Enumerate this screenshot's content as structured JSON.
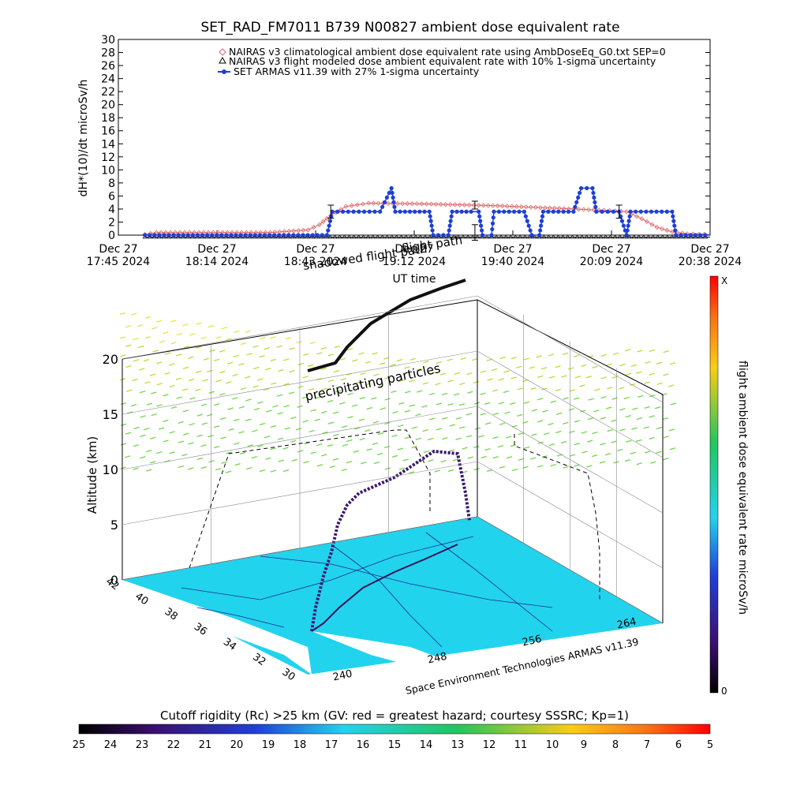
{
  "chart_data": [
    {
      "type": "line",
      "title": "SET_RAD_FM7011  B739 N00827 ambient dose equivalent rate",
      "ylabel": "dH*(10)/dt microSv/h",
      "xlabel": "UT time",
      "ylim": [
        0,
        30
      ],
      "yticks": [
        "0",
        "2",
        "4",
        "6",
        "8",
        "10",
        "12",
        "14",
        "16",
        "18",
        "20",
        "22",
        "24",
        "26",
        "28",
        "30"
      ],
      "xticks": [
        {
          "date": "Dec 27",
          "time": "17:45 2024"
        },
        {
          "date": "Dec 27",
          "time": "18:14 2024"
        },
        {
          "date": "Dec 27",
          "time": "18:43 2024"
        },
        {
          "date": "Dec 27",
          "time": "19:12 2024"
        },
        {
          "date": "Dec 27",
          "time": "19:40 2024"
        },
        {
          "date": "Dec 27",
          "time": "20:09 2024"
        },
        {
          "date": "Dec 27",
          "time": "20:38 2024"
        }
      ],
      "legend_placement": "top-right",
      "series": [
        {
          "name": "NAIRAS v3 climatological ambient dose equivalent rate using AmbDoseEq_G0.txt SEP=0",
          "color": "#e06666",
          "marker": "diamond",
          "points": [
            [
              0.35,
              0.1
            ],
            [
              0.5,
              0.4
            ],
            [
              1.0,
              0.4
            ],
            [
              2.0,
              0.4
            ],
            [
              2.5,
              0.8
            ],
            [
              2.65,
              1.6
            ],
            [
              2.8,
              3.0
            ],
            [
              3.0,
              4.4
            ],
            [
              3.3,
              4.9
            ],
            [
              4.0,
              4.8
            ],
            [
              5.0,
              4.5
            ],
            [
              6.0,
              4.0
            ],
            [
              6.4,
              3.8
            ],
            [
              6.7,
              3.6
            ],
            [
              6.9,
              2.5
            ],
            [
              7.1,
              1.2
            ],
            [
              7.3,
              0.5
            ],
            [
              7.5,
              0.2
            ],
            [
              7.8,
              0.1
            ]
          ]
        },
        {
          "name": "NAIRAS v3 flight modeled dose ambient equivalent rate with 10% 1-sigma uncertainty",
          "color": "#000000",
          "marker": "triangle",
          "points": [
            [
              0.35,
              -0.3
            ],
            [
              7.8,
              -0.3
            ]
          ]
        },
        {
          "name": "SET ARMAS v11.39 with 27% 1-sigma uncertainty",
          "color": "#1f3fd6",
          "marker": "circle",
          "points": [
            [
              0.35,
              0.0
            ],
            [
              2.75,
              0.0
            ],
            [
              2.82,
              3.6
            ],
            [
              3.1,
              3.6
            ],
            [
              3.45,
              3.6
            ],
            [
              3.6,
              7.2
            ],
            [
              3.65,
              3.6
            ],
            [
              4.1,
              3.6
            ],
            [
              4.15,
              0.0
            ],
            [
              4.35,
              0.0
            ],
            [
              4.4,
              3.6
            ],
            [
              4.65,
              3.6
            ],
            [
              4.75,
              3.6
            ],
            [
              4.8,
              0.0
            ],
            [
              4.92,
              0.0
            ],
            [
              4.95,
              3.6
            ],
            [
              5.35,
              3.6
            ],
            [
              5.45,
              0.0
            ],
            [
              5.55,
              0.0
            ],
            [
              5.6,
              3.6
            ],
            [
              6.0,
              3.6
            ],
            [
              6.1,
              7.2
            ],
            [
              6.25,
              7.2
            ],
            [
              6.3,
              3.6
            ],
            [
              6.6,
              3.6
            ],
            [
              6.7,
              0.0
            ],
            [
              6.75,
              3.6
            ],
            [
              7.3,
              3.6
            ],
            [
              7.35,
              0.0
            ],
            [
              7.8,
              0.0
            ]
          ]
        }
      ],
      "error_bars": [
        [
          2.8,
          3.6,
          1.0
        ],
        [
          4.7,
          4.6,
          0.6
        ],
        [
          6.6,
          3.6,
          1.0
        ],
        [
          4.7,
          0.4,
          1.2
        ]
      ]
    },
    {
      "type": "scatter",
      "ylabel": "Altitude (km)",
      "zticks": [
        "0",
        "5",
        "10",
        "15",
        "20"
      ],
      "lat_ticks": [
        "42",
        "40",
        "38",
        "36",
        "34",
        "32",
        "30"
      ],
      "lon_ticks": [
        "240",
        "248",
        "256",
        "264"
      ],
      "annotations": [
        "flight path",
        "shadowed flight path",
        "precipitating particles"
      ],
      "credit": "Space Environment Technologies ARMAS v11.39",
      "colorbar_right": {
        "label": "flight ambient dose equivalent rate microSv/h",
        "top": "X",
        "bottom": "0"
      },
      "colorbar_bottom": {
        "label": "Cutoff rigidity (Rc) >25 km (GV: red = greatest hazard; courtesy SSSRC; Kp=1)",
        "ticks": [
          "25",
          "24",
          "23",
          "22",
          "21",
          "20",
          "19",
          "18",
          "17",
          "16",
          "15",
          "14",
          "13",
          "12",
          "11",
          "10",
          "9",
          "8",
          "7",
          "6",
          "5"
        ]
      }
    }
  ],
  "colors": {
    "nairas_clim": "#e06666",
    "armas": "#1f3fd6",
    "map_fill": "#22d3ee",
    "path": "#2a1155"
  }
}
